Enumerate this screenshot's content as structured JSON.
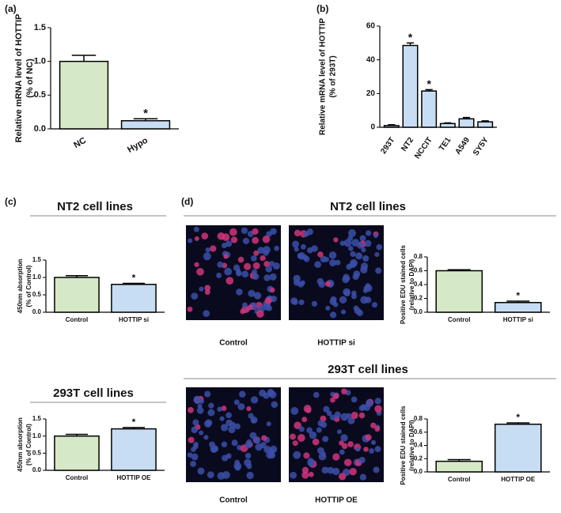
{
  "panel_labels": [
    "(a)",
    "(b)",
    "(c)",
    "(d)"
  ],
  "section_titles": [
    "NT2 cell lines",
    "NT2 cell lines",
    "293T cell lines",
    "293T cell lines"
  ],
  "image_captions": [
    "Control",
    "HOTTIP si",
    "Control",
    "HOTTIP OE"
  ],
  "chart_data": [
    {
      "type": "bar",
      "ylabel": [
        "Relative mRNA level of HOTTIP",
        "(% of  NC)"
      ],
      "categories": [
        "NC",
        "Hypo"
      ],
      "values": [
        1.0,
        0.12
      ],
      "errors": [
        0.09,
        0.03
      ],
      "colors": [
        "#d6e9c6",
        "#c7ddf3"
      ],
      "annotations": [
        null,
        "*"
      ],
      "ylim": [
        0,
        1.5
      ],
      "yticks": [
        {
          "value": 0,
          "label": "0.0"
        },
        {
          "value": 0.5,
          "label": "0.5"
        },
        {
          "value": 1,
          "label": "1.0"
        },
        {
          "value": 1.5,
          "label": "1.5"
        }
      ]
    },
    {
      "type": "bar",
      "ylabel": [
        "Relative mRNA level of HOTTIP",
        "(% of 293T)"
      ],
      "categories": [
        "293T",
        "NT2",
        "NCCIT",
        "TE1",
        "A549",
        "SY5Y"
      ],
      "values": [
        1,
        48.5,
        21.5,
        2.2,
        5,
        3.2
      ],
      "errors": [
        0.5,
        1.5,
        0.8,
        0.4,
        0.8,
        0.6
      ],
      "colors": [
        "#c7ddf3",
        "#c7ddf3",
        "#c7ddf3",
        "#c7ddf3",
        "#c7ddf3",
        "#c7ddf3"
      ],
      "annotations": [
        null,
        "*",
        "*",
        null,
        null,
        null
      ],
      "ylim": [
        0,
        60
      ],
      "yticks": [
        0,
        20,
        40,
        60
      ]
    },
    {
      "type": "bar",
      "ylabel": [
        "450nm absorption",
        "(% of Control)"
      ],
      "categories": [
        "Control",
        "HOTTIP si"
      ],
      "values": [
        1.0,
        0.8
      ],
      "errors": [
        0.05,
        0.03
      ],
      "colors": [
        "#d6e9c6",
        "#c7ddf3"
      ],
      "annotations": [
        null,
        "*"
      ],
      "ylim": [
        0,
        1.5
      ],
      "yticks": [
        {
          "value": 0,
          "label": "0.0"
        },
        {
          "value": 0.5,
          "label": "0.5"
        },
        {
          "value": 1,
          "label": "1.0"
        },
        {
          "value": 1.5,
          "label": "1.5"
        }
      ]
    },
    {
      "type": "bar",
      "ylabel": [
        "450nm absorption",
        "(% of Control)"
      ],
      "categories": [
        "Control",
        "HOTTIP OE"
      ],
      "values": [
        1.0,
        1.21
      ],
      "errors": [
        0.05,
        0.04
      ],
      "colors": [
        "#d6e9c6",
        "#c7ddf3"
      ],
      "annotations": [
        null,
        "*"
      ],
      "ylim": [
        0,
        1.5
      ],
      "yticks": [
        {
          "value": 0,
          "label": "0.0"
        },
        {
          "value": 0.5,
          "label": "0.5"
        },
        {
          "value": 1,
          "label": "1.0"
        },
        {
          "value": 1.5,
          "label": "1.5"
        }
      ]
    },
    {
      "type": "bar",
      "ylabel": [
        "Positive EDU stained cells",
        "(relative to DAPI)"
      ],
      "categories": [
        "Control",
        "HOTTIP si"
      ],
      "values": [
        0.6,
        0.14
      ],
      "errors": [
        0.015,
        0.02
      ],
      "colors": [
        "#d6e9c6",
        "#c7ddf3"
      ],
      "annotations": [
        null,
        "*"
      ],
      "ylim": [
        0,
        0.8
      ],
      "yticks": [
        {
          "value": 0,
          "label": "0.0"
        },
        {
          "value": 0.2,
          "label": "0.2"
        },
        {
          "value": 0.4,
          "label": "0.4"
        },
        {
          "value": 0.6,
          "label": "0.6"
        },
        {
          "value": 0.8,
          "label": "0.8"
        }
      ]
    },
    {
      "type": "bar",
      "ylabel": [
        "Positive EDU stained cells",
        "(relative to DAPI)"
      ],
      "categories": [
        "Control",
        "HOTTIP OE"
      ],
      "values": [
        0.16,
        0.72
      ],
      "errors": [
        0.025,
        0.02
      ],
      "colors": [
        "#d6e9c6",
        "#c7ddf3"
      ],
      "annotations": [
        null,
        "*"
      ],
      "ylim": [
        0,
        0.8
      ],
      "yticks": [
        {
          "value": 0,
          "label": "0.0"
        },
        {
          "value": 0.2,
          "label": "0.2"
        },
        {
          "value": 0.4,
          "label": "0.4"
        },
        {
          "value": 0.6,
          "label": "0.6"
        },
        {
          "value": 0.8,
          "label": "0.8"
        }
      ]
    }
  ]
}
